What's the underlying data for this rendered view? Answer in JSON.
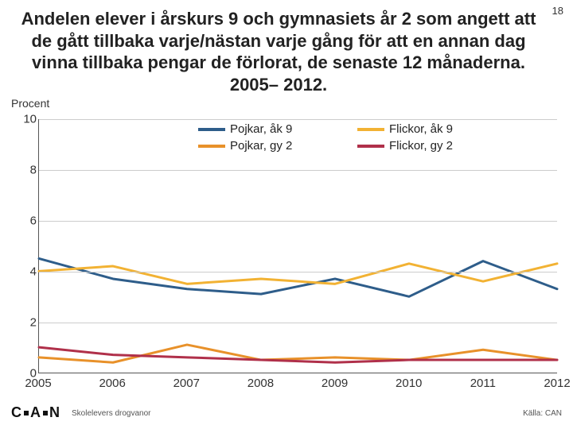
{
  "page_number": "18",
  "title": "Andelen elever i årskurs 9 och gymnasiets år 2 som angett att de gått tillbaka varje/nästan varje gång för att en annan dag vinna tillbaka pengar de förlorat, de senaste 12 månaderna.  2005– 2012.",
  "y_axis_label": "Procent",
  "footer_left": "Skolelevers drogvanor",
  "footer_right": "Källa: CAN",
  "logo_text": "C A N",
  "chart": {
    "type": "line",
    "background_color": "#ffffff",
    "grid_color": "#cccccc",
    "axis_color": "#555555",
    "ylim": [
      0,
      10
    ],
    "ytick_step": 2,
    "yticks": [
      0,
      2,
      4,
      6,
      8,
      10
    ],
    "xticks": [
      "2005",
      "2006",
      "2007",
      "2008",
      "2009",
      "2010",
      "2011",
      "2012"
    ],
    "line_width": 3,
    "label_fontsize": 15,
    "legend": [
      {
        "label": "Pojkar,  åk 9",
        "color": "#2e5d8a"
      },
      {
        "label": "Flickor, åk 9",
        "color": "#f2b233"
      },
      {
        "label": "Pojkar, gy 2",
        "color": "#e8912a"
      },
      {
        "label": "Flickor, gy 2",
        "color": "#b0304a"
      }
    ],
    "series": [
      {
        "name": "Pojkar, åk 9",
        "color": "#2e5d8a",
        "values": [
          4.5,
          3.7,
          3.3,
          3.1,
          3.7,
          3.0,
          4.4,
          3.3
        ]
      },
      {
        "name": "Flickor, åk 9",
        "color": "#f2b233",
        "values": [
          4.0,
          4.2,
          3.5,
          3.7,
          3.5,
          4.3,
          3.6,
          4.3
        ]
      },
      {
        "name": "Pojkar, gy 2",
        "color": "#e8912a",
        "values": [
          0.6,
          0.4,
          1.1,
          0.5,
          0.6,
          0.5,
          0.9,
          0.5
        ]
      },
      {
        "name": "Flickor, gy 2",
        "color": "#b0304a",
        "values": [
          1.0,
          0.7,
          0.6,
          0.5,
          0.4,
          0.5,
          0.5,
          0.5
        ]
      }
    ]
  }
}
